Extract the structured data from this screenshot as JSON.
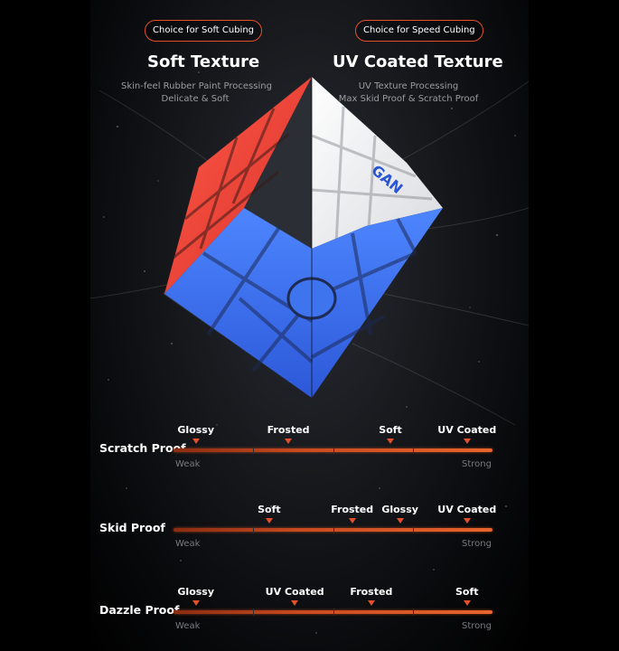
{
  "header": {
    "left_badge": "Choice for Soft Cubing",
    "right_badge": "Choice for Speed Cubing",
    "left_title": "Soft Texture",
    "right_title": "UV Coated Texture",
    "left_sub1": "Skin-feel Rubber Paint Processing",
    "left_sub2": "Delicate & Soft",
    "right_sub1": "UV Texture Processing",
    "right_sub2": "Max Skid Proof & Scratch Proof"
  },
  "cube": {
    "logo_icon": "gan-logo-icon",
    "colors": {
      "red": "#f04c3c",
      "blue": "#3b6ff0",
      "white": "#f2f2f2",
      "core": "#3a3d44"
    }
  },
  "scale_low": "Weak",
  "scale_high": "Strong",
  "rows": [
    {
      "label": "Scratch Proof",
      "markers": [
        {
          "text": "Glossy",
          "level": 0.07
        },
        {
          "text": "Frosted",
          "level": 0.36
        },
        {
          "text": "Soft",
          "level": 0.68
        },
        {
          "text": "UV Coated",
          "level": 0.92
        }
      ]
    },
    {
      "label": "Skid Proof",
      "markers": [
        {
          "text": "Soft",
          "level": 0.3
        },
        {
          "text": "Frosted",
          "level": 0.56
        },
        {
          "text": "Glossy",
          "level": 0.71
        },
        {
          "text": "UV Coated",
          "level": 0.92
        }
      ]
    },
    {
      "label": "Dazzle Proof",
      "markers": [
        {
          "text": "Glossy",
          "level": 0.07
        },
        {
          "text": "UV Coated",
          "level": 0.38
        },
        {
          "text": "Frosted",
          "level": 0.62
        },
        {
          "text": "Soft",
          "level": 0.92
        }
      ]
    }
  ]
}
